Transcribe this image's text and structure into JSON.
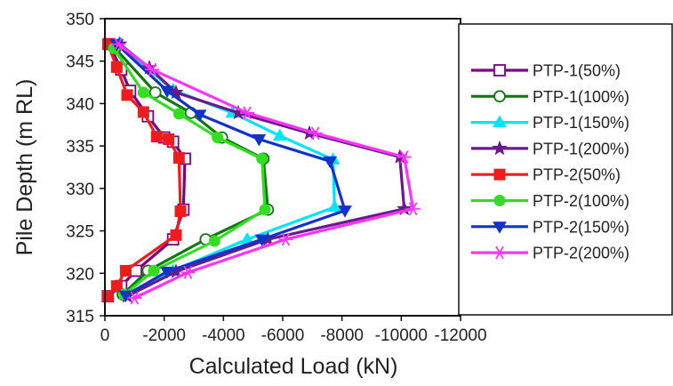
{
  "chart_data": {
    "type": "line",
    "xlabel": "Calculated Load (kN)",
    "ylabel": "Pile Depth (m RL)",
    "xlim": [
      0,
      -12000
    ],
    "ylim": [
      315,
      350
    ],
    "xticks": [
      0,
      -2000,
      -4000,
      -6000,
      -8000,
      -10000,
      -12000
    ],
    "xtick_labels": [
      "0",
      "-2000",
      "-4000",
      "-6000",
      "-8000",
      "-10000",
      "-12000"
    ],
    "yticks": [
      315,
      320,
      325,
      330,
      335,
      340,
      345,
      350
    ],
    "ytick_labels": [
      "315",
      "320",
      "325",
      "330",
      "335",
      "340",
      "345",
      "350"
    ],
    "legend_position": "right",
    "series": [
      {
        "name": "PTP-1(50%)",
        "color": "#800080",
        "marker": "square-open",
        "x": [
          -150,
          -550,
          -850,
          -1450,
          -2000,
          -2300,
          -2700,
          -2650,
          -2300,
          -1050,
          -550,
          -100
        ],
        "y": [
          347,
          344,
          341.5,
          338.5,
          336,
          335.5,
          333.5,
          327.5,
          324,
          320.3,
          318.5,
          317.3
        ]
      },
      {
        "name": "PTP-1(100%)",
        "color": "#117711",
        "marker": "circle-open",
        "x": [
          -350,
          -1700,
          -2900,
          -3950,
          -5350,
          -5500,
          -3400,
          -1450,
          -600
        ],
        "y": [
          346.5,
          341.3,
          338.9,
          336,
          333.5,
          327.5,
          324,
          320.3,
          317.5
        ]
      },
      {
        "name": "PTP-1(150%)",
        "color": "#00e5ff",
        "marker": "triangle",
        "x": [
          -450,
          -2300,
          -4300,
          -5900,
          -7700,
          -7750,
          -4800,
          -2300,
          -700
        ],
        "y": [
          347,
          341.6,
          338.9,
          336.2,
          333.4,
          327.8,
          324,
          320.3,
          317.5
        ]
      },
      {
        "name": "PTP-1(200%)",
        "color": "#6a1a8a",
        "marker": "star",
        "x": [
          -500,
          -1500,
          -2400,
          -4500,
          -6900,
          -9950,
          -10100,
          -5500,
          -2400,
          -750
        ],
        "y": [
          347,
          344.2,
          341.3,
          338.9,
          336.5,
          333.7,
          327.6,
          324,
          320.2,
          317.3
        ]
      },
      {
        "name": "PTP-2(50%)",
        "color": "#ee1c1c",
        "marker": "square",
        "x": [
          -100,
          -400,
          -750,
          -1300,
          -1750,
          -2150,
          -2500,
          -2550,
          -2400,
          -700,
          -400,
          -100
        ],
        "y": [
          347,
          344.3,
          341,
          339,
          336.1,
          335.8,
          333.6,
          327.3,
          324.5,
          320.3,
          318.5,
          317.3
        ]
      },
      {
        "name": "PTP-2(100%)",
        "color": "#33dd22",
        "marker": "circle",
        "x": [
          -300,
          -1300,
          -2500,
          -3800,
          -5300,
          -5400,
          -3700,
          -1650,
          -650
        ],
        "y": [
          346.5,
          341.3,
          338.8,
          336,
          333.5,
          327.5,
          323.8,
          320.3,
          317.5
        ]
      },
      {
        "name": "PTP-2(150%)",
        "color": "#1133cc",
        "marker": "triangle-down",
        "x": [
          -400,
          -2100,
          -3200,
          -5200,
          -7600,
          -8100,
          -5300,
          -2100,
          -700
        ],
        "y": [
          347,
          341.5,
          338.7,
          335.8,
          333.2,
          327.4,
          324,
          320.2,
          317.4
        ]
      },
      {
        "name": "PTP-2(200%)",
        "color": "#ff33ff",
        "marker": "asterisk",
        "x": [
          -450,
          -1600,
          -4800,
          -7100,
          -10100,
          -10400,
          -6100,
          -2800,
          -1000
        ],
        "y": [
          347,
          344,
          338.9,
          336.5,
          333.7,
          327.6,
          324,
          320.1,
          317.1
        ]
      }
    ]
  }
}
